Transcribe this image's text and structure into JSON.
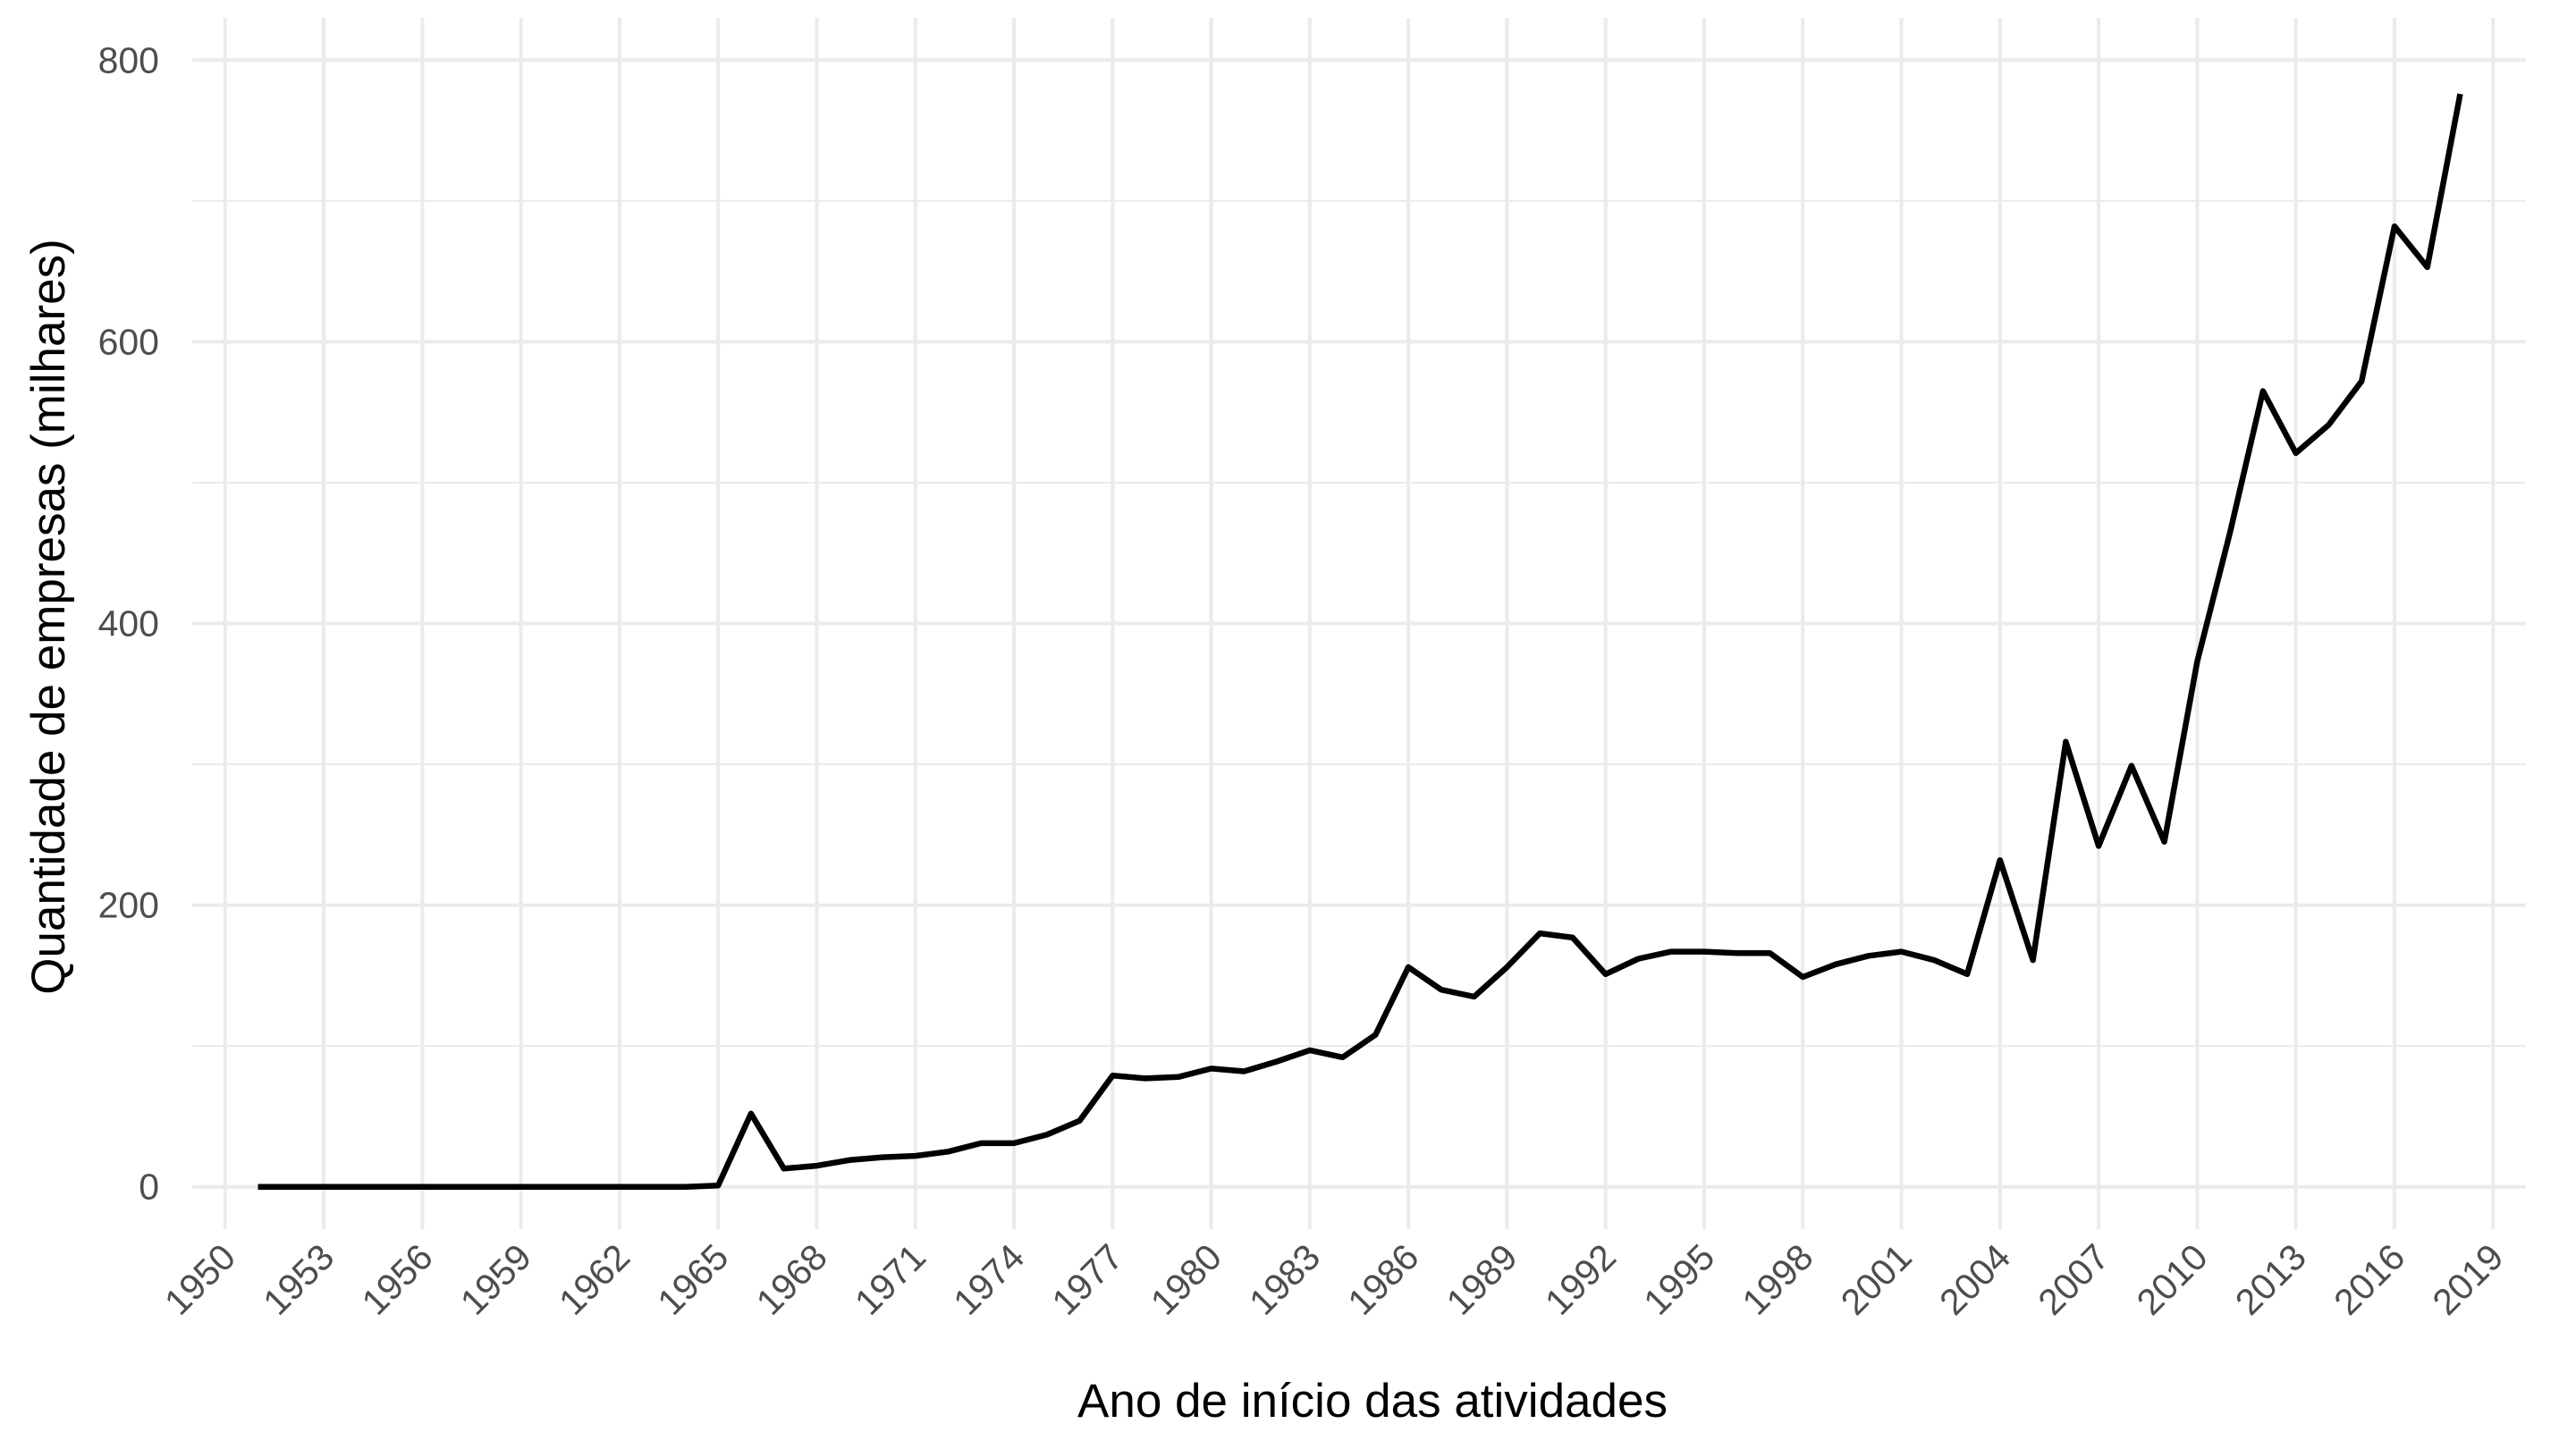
{
  "chart_data": {
    "type": "line",
    "title": "",
    "xlabel": "Ano de início das atividades",
    "ylabel": "Quantidade de empresas (milhares)",
    "xlim": [
      1949,
      2020
    ],
    "ylim": [
      -30,
      830
    ],
    "x_ticks": [
      1950,
      1953,
      1956,
      1959,
      1962,
      1965,
      1968,
      1971,
      1974,
      1977,
      1980,
      1983,
      1986,
      1989,
      1992,
      1995,
      1998,
      2001,
      2004,
      2007,
      2010,
      2013,
      2016,
      2019
    ],
    "y_ticks": [
      0,
      200,
      400,
      600,
      800
    ],
    "grid": true,
    "line_color": "#000000",
    "grid_color": "#ebebeb",
    "series": [
      {
        "x": [
          1951,
          1952,
          1953,
          1954,
          1955,
          1956,
          1957,
          1958,
          1959,
          1960,
          1961,
          1962,
          1963,
          1964,
          1965,
          1966,
          1967,
          1968,
          1969,
          1970,
          1971,
          1972,
          1973,
          1974,
          1975,
          1976,
          1977,
          1978,
          1979,
          1980,
          1981,
          1982,
          1983,
          1984,
          1985,
          1986,
          1987,
          1988,
          1989,
          1990,
          1991,
          1992,
          1993,
          1994,
          1995,
          1996,
          1997,
          1998,
          1999,
          2000,
          2001,
          2002,
          2003,
          2004,
          2005,
          2006,
          2007,
          2008,
          2009,
          2010,
          2011,
          2012,
          2013,
          2014,
          2015,
          2016,
          2017,
          2018
        ],
        "values": [
          0,
          0,
          0,
          0,
          0,
          0,
          0,
          0,
          0,
          0,
          0,
          0,
          0,
          0,
          1,
          52,
          13,
          15,
          19,
          21,
          22,
          25,
          31,
          31,
          37,
          47,
          79,
          77,
          78,
          84,
          82,
          89,
          97,
          92,
          108,
          156,
          140,
          135,
          156,
          180,
          177,
          151,
          162,
          167,
          167,
          166,
          166,
          149,
          158,
          164,
          167,
          161,
          151,
          232,
          161,
          316,
          242,
          299,
          245,
          373,
          465,
          565,
          521,
          541,
          572,
          682,
          653,
          776
        ]
      }
    ]
  }
}
